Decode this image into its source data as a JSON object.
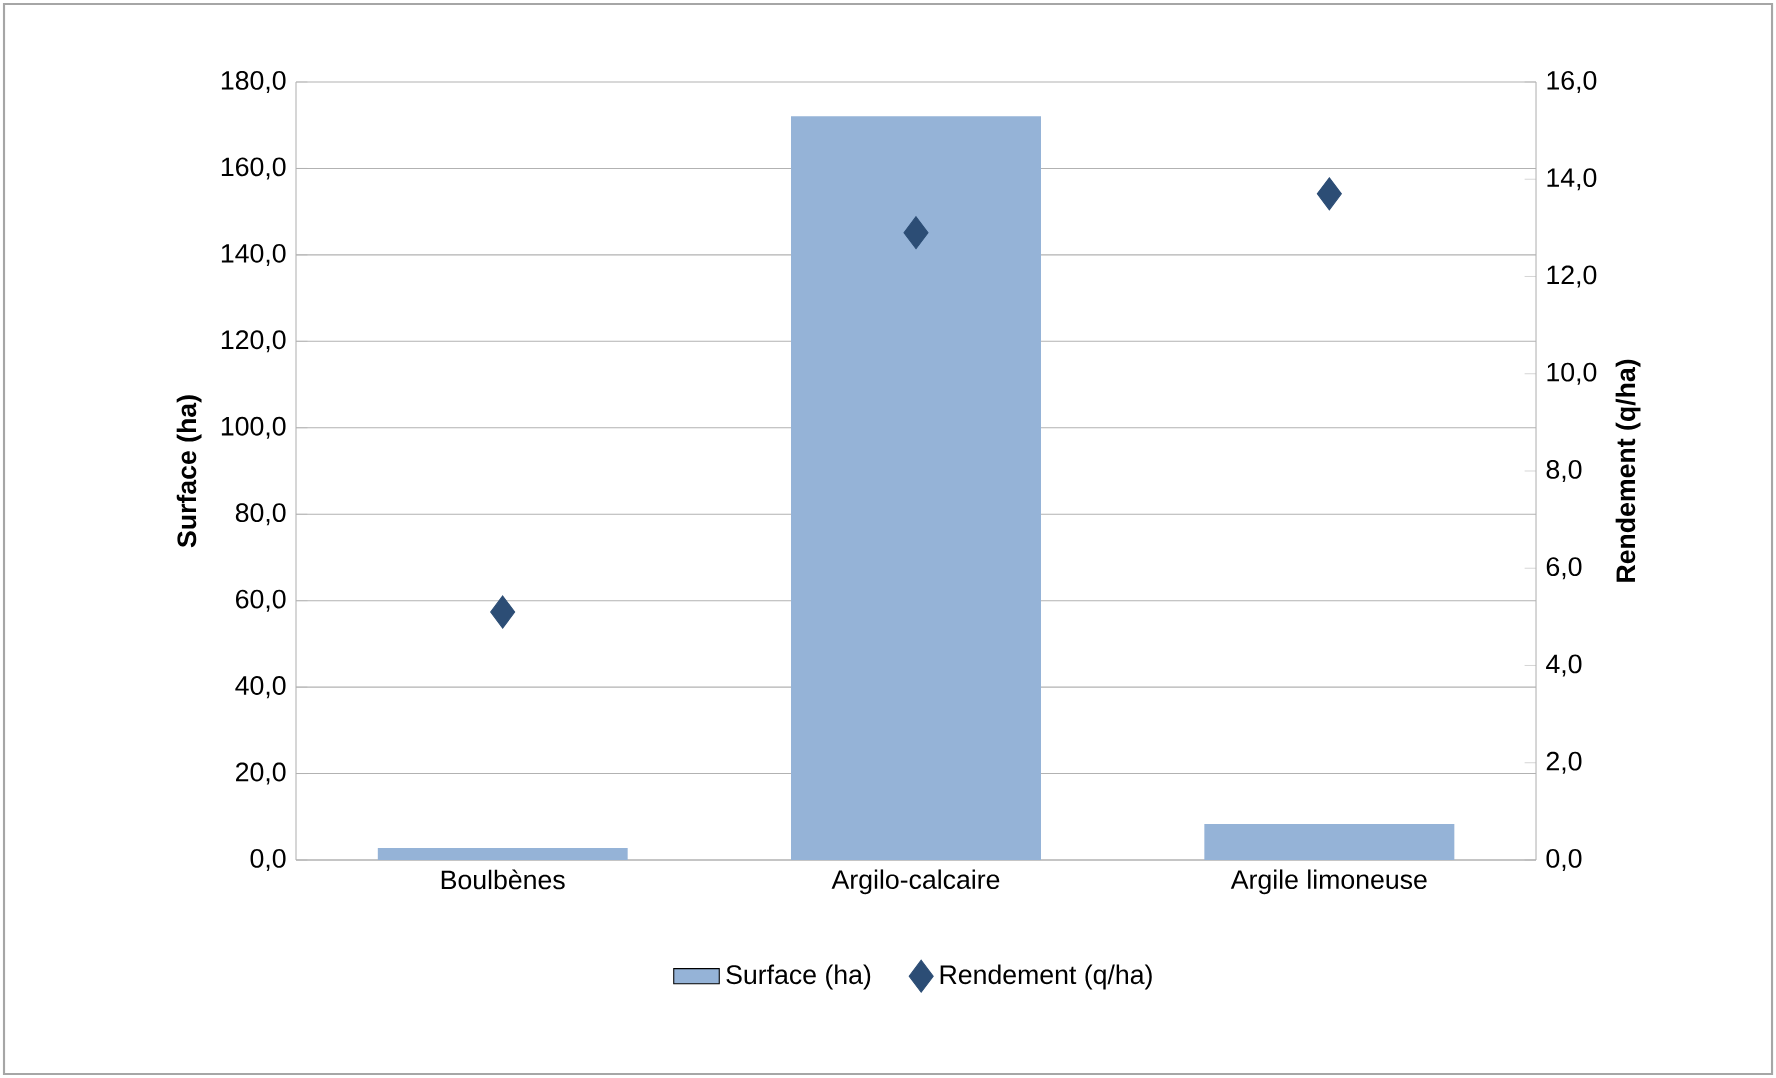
{
  "chart_data": {
    "type": "bar",
    "categories": [
      "Boulbènes",
      "Argilo-calcaire",
      "Argile limoneuse"
    ],
    "series": [
      {
        "name": "Surface (ha)",
        "color": "#95b3d7",
        "values": [
          2.8,
          172.1,
          8.3
        ]
      },
      {
        "name": "Rendement (q/ha)",
        "type": "scatter",
        "axis": "y2",
        "marker": "diamond",
        "color": "#2c4d75",
        "values": [
          5.1,
          12.9,
          13.7
        ]
      }
    ],
    "ylabel": "Surface (ha)",
    "y2label": "Rendement (q/ha)",
    "ylim": [
      0,
      180
    ],
    "yticks": [
      {
        "value": 0,
        "label": "0,0"
      },
      {
        "value": 20,
        "label": "20,0"
      },
      {
        "value": 40,
        "label": "40,0"
      },
      {
        "value": 60,
        "label": "60,0"
      },
      {
        "value": 80,
        "label": "80,0"
      },
      {
        "value": 100,
        "label": "100,0"
      },
      {
        "value": 120,
        "label": "120,0"
      },
      {
        "value": 140,
        "label": "140,0"
      },
      {
        "value": 160,
        "label": "160,0"
      },
      {
        "value": 180,
        "label": "180,0"
      }
    ],
    "y2lim": [
      0,
      16
    ],
    "y2ticks": [
      {
        "value": 0,
        "label": "0,0"
      },
      {
        "value": 2,
        "label": "2,0"
      },
      {
        "value": 4,
        "label": "4,0"
      },
      {
        "value": 6,
        "label": "6,0"
      },
      {
        "value": 8,
        "label": "8,0"
      },
      {
        "value": 10,
        "label": "10,0"
      },
      {
        "value": 12,
        "label": "12,0"
      },
      {
        "value": 14,
        "label": "14,0"
      },
      {
        "value": 16,
        "label": "16,0"
      }
    ],
    "grid": "y",
    "legend": "bottom"
  }
}
